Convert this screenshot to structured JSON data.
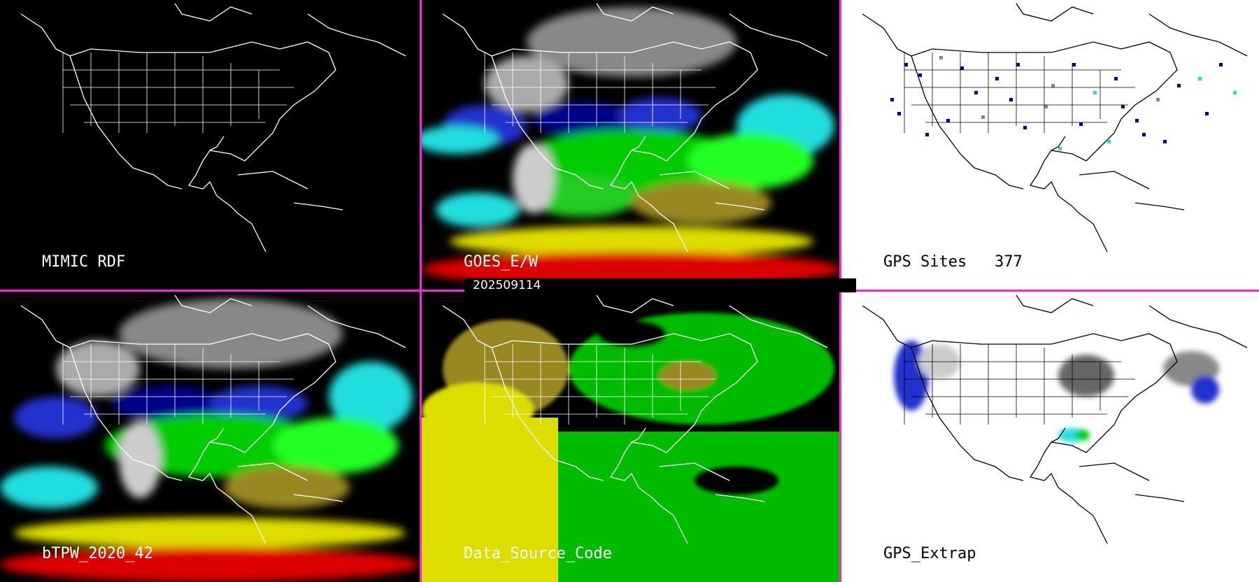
{
  "panels": {
    "p1": {
      "label": "MIMIC RDF",
      "background": "#000000",
      "coastline": "#ffffff"
    },
    "p2": {
      "label": "GOES_E/W",
      "background": "#000000",
      "coastline": "#ffffff"
    },
    "p3": {
      "label": "GPS Sites",
      "count": "377",
      "background": "#ffffff",
      "coastline": "#000000"
    },
    "p4": {
      "label": "bTPW_2020_42",
      "background": "#000000",
      "coastline": "#ffffff"
    },
    "p5": {
      "label": "Data_Source_Code",
      "background": "#000000",
      "coastline": "#ffffff"
    },
    "p6": {
      "label": "GPS_Extrap",
      "background": "#ffffff",
      "coastline": "#000000"
    }
  },
  "timestamp": "202509114",
  "colors": {
    "divider": "#ff22dd",
    "tpw_scale": [
      "#888888",
      "#cccccc",
      "#000088",
      "#2233cc",
      "#22dddd",
      "#00cc00",
      "#22ff22",
      "#998822",
      "#dddd00",
      "#dd0000"
    ],
    "data_source": [
      "#00bb00",
      "#dddd00",
      "#998822"
    ]
  }
}
